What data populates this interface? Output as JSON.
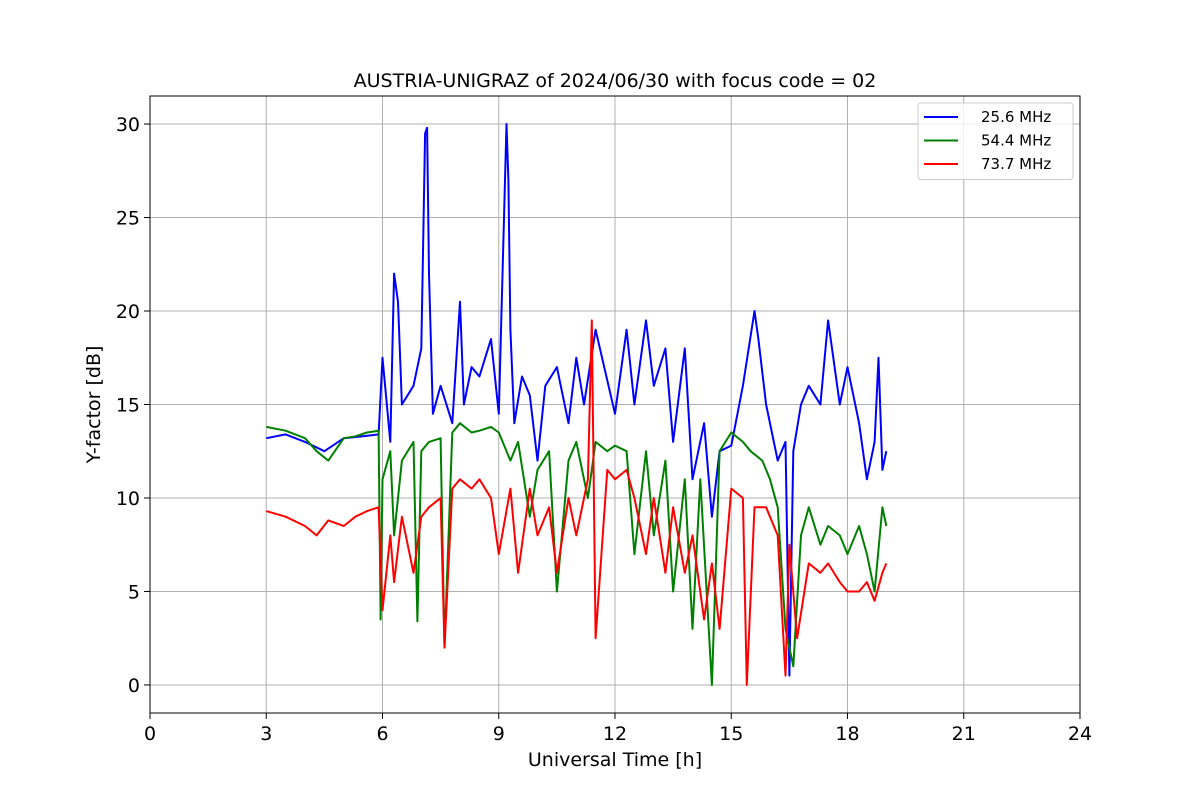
{
  "chart_data": {
    "type": "line",
    "title": "AUSTRIA-UNIGRAZ of 2024/06/30 with focus code = 02",
    "xlabel": "Universal Time [h]",
    "ylabel": "Y-factor [dB]",
    "xlim": [
      0,
      24
    ],
    "ylim": [
      -1.5,
      31.5
    ],
    "xticks": [
      0,
      3,
      6,
      9,
      12,
      15,
      18,
      21,
      24
    ],
    "xtick_labels": [
      "0",
      "3",
      "6",
      "9",
      "12",
      "15",
      "18",
      "21",
      "24"
    ],
    "yticks": [
      0,
      5,
      10,
      15,
      20,
      25,
      30
    ],
    "ytick_labels": [
      "0",
      "5",
      "10",
      "15",
      "20",
      "25",
      "30"
    ],
    "grid": true,
    "legend_position": "top-right",
    "series": [
      {
        "name": "25.6 MHz",
        "color": "#0000ff",
        "x": [
          3.0,
          3.5,
          4.0,
          4.5,
          5.0,
          5.5,
          5.9,
          6.0,
          6.2,
          6.3,
          6.4,
          6.5,
          6.8,
          7.0,
          7.1,
          7.15,
          7.2,
          7.3,
          7.5,
          7.8,
          8.0,
          8.1,
          8.3,
          8.5,
          8.8,
          9.0,
          9.2,
          9.25,
          9.3,
          9.4,
          9.6,
          9.8,
          10.0,
          10.2,
          10.5,
          10.8,
          11.0,
          11.2,
          11.5,
          12.0,
          12.3,
          12.5,
          12.8,
          13.0,
          13.3,
          13.5,
          13.8,
          14.0,
          14.3,
          14.5,
          14.7,
          15.0,
          15.3,
          15.6,
          15.7,
          15.9,
          16.2,
          16.4,
          16.5,
          16.6,
          16.8,
          17.0,
          17.3,
          17.5,
          17.8,
          18.0,
          18.3,
          18.5,
          18.7,
          18.8,
          18.9,
          19.0
        ],
        "values": [
          13.2,
          13.4,
          13.0,
          12.5,
          13.2,
          13.3,
          13.4,
          17.5,
          13.0,
          22.0,
          20.5,
          15.0,
          16.0,
          18.0,
          29.5,
          29.8,
          22.0,
          14.5,
          16.0,
          14.0,
          20.5,
          15.0,
          17.0,
          16.5,
          18.5,
          14.5,
          30.0,
          27.0,
          19.0,
          14.0,
          16.5,
          15.5,
          12.0,
          16.0,
          17.0,
          14.0,
          17.5,
          15.0,
          19.0,
          14.5,
          19.0,
          15.0,
          19.5,
          16.0,
          18.0,
          13.0,
          18.0,
          11.0,
          14.0,
          9.0,
          12.5,
          12.8,
          16.0,
          20.0,
          18.5,
          15.0,
          12.0,
          13.0,
          0.5,
          12.5,
          15.0,
          16.0,
          15.0,
          19.5,
          15.0,
          17.0,
          14.0,
          11.0,
          13.0,
          17.5,
          11.5,
          12.5
        ]
      },
      {
        "name": "54.4 MHz",
        "color": "#008000",
        "x": [
          3.0,
          3.5,
          4.0,
          4.3,
          4.6,
          5.0,
          5.3,
          5.6,
          5.9,
          5.95,
          6.0,
          6.2,
          6.3,
          6.5,
          6.8,
          6.9,
          7.0,
          7.2,
          7.5,
          7.6,
          7.8,
          8.0,
          8.3,
          8.5,
          8.8,
          9.0,
          9.3,
          9.5,
          9.8,
          10.0,
          10.3,
          10.5,
          10.8,
          11.0,
          11.3,
          11.5,
          11.8,
          12.0,
          12.3,
          12.5,
          12.8,
          13.0,
          13.3,
          13.5,
          13.8,
          14.0,
          14.2,
          14.5,
          14.7,
          15.0,
          15.3,
          15.5,
          15.8,
          16.0,
          16.2,
          16.4,
          16.6,
          16.8,
          17.0,
          17.3,
          17.5,
          17.8,
          18.0,
          18.3,
          18.5,
          18.7,
          18.9,
          19.0
        ],
        "values": [
          13.8,
          13.6,
          13.2,
          12.5,
          12.0,
          13.2,
          13.3,
          13.5,
          13.6,
          3.5,
          11.0,
          12.5,
          8.0,
          12.0,
          13.0,
          3.4,
          12.5,
          13.0,
          13.2,
          2.0,
          13.5,
          14.0,
          13.5,
          13.6,
          13.8,
          13.5,
          12.0,
          13.0,
          9.0,
          11.5,
          12.5,
          5.0,
          12.0,
          13.0,
          10.0,
          13.0,
          12.5,
          12.8,
          12.5,
          7.0,
          12.5,
          8.0,
          12.0,
          5.0,
          11.0,
          3.0,
          11.0,
          0.0,
          12.5,
          13.5,
          13.0,
          12.5,
          12.0,
          11.0,
          9.5,
          3.0,
          1.0,
          8.0,
          9.5,
          7.5,
          8.5,
          8.0,
          7.0,
          8.5,
          7.0,
          5.0,
          9.5,
          8.5
        ]
      },
      {
        "name": "73.7 MHz",
        "color": "#ff0000",
        "x": [
          3.0,
          3.5,
          4.0,
          4.3,
          4.6,
          5.0,
          5.3,
          5.6,
          5.9,
          6.0,
          6.2,
          6.3,
          6.5,
          6.8,
          7.0,
          7.2,
          7.5,
          7.6,
          7.8,
          8.0,
          8.3,
          8.5,
          8.8,
          9.0,
          9.3,
          9.5,
          9.8,
          10.0,
          10.3,
          10.5,
          10.8,
          11.0,
          11.3,
          11.4,
          11.5,
          11.8,
          12.0,
          12.3,
          12.5,
          12.8,
          13.0,
          13.3,
          13.5,
          13.8,
          14.0,
          14.3,
          14.5,
          14.7,
          15.0,
          15.3,
          15.4,
          15.6,
          15.9,
          16.2,
          16.4,
          16.5,
          16.7,
          17.0,
          17.3,
          17.5,
          17.8,
          18.0,
          18.3,
          18.5,
          18.7,
          18.9,
          19.0
        ],
        "values": [
          9.3,
          9.0,
          8.5,
          8.0,
          8.8,
          8.5,
          9.0,
          9.3,
          9.5,
          4.0,
          8.0,
          5.5,
          9.0,
          6.0,
          9.0,
          9.5,
          10.0,
          2.0,
          10.5,
          11.0,
          10.5,
          11.0,
          10.0,
          7.0,
          10.5,
          6.0,
          10.5,
          8.0,
          9.5,
          6.0,
          10.0,
          8.0,
          11.0,
          19.5,
          2.5,
          11.5,
          11.0,
          11.5,
          10.0,
          7.0,
          10.0,
          6.0,
          9.5,
          6.0,
          8.0,
          3.5,
          6.5,
          3.0,
          10.5,
          10.0,
          0.0,
          9.5,
          9.5,
          8.0,
          0.5,
          7.5,
          2.5,
          6.5,
          6.0,
          6.5,
          5.5,
          5.0,
          5.0,
          5.5,
          4.5,
          6.0,
          6.5
        ]
      }
    ]
  }
}
